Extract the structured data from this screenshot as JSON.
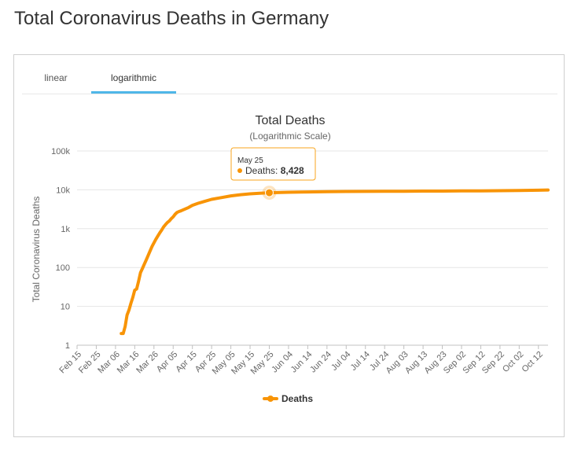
{
  "page": {
    "title": "Total Coronavirus Deaths in Germany"
  },
  "tabs": [
    {
      "label": "linear",
      "active": false
    },
    {
      "label": "logarithmic",
      "active": true
    }
  ],
  "colors": {
    "series": "#f89406",
    "accent_tab": "#4fb7e8",
    "tooltip_border": "#f8a41c"
  },
  "chart_data": {
    "type": "line",
    "title": "Total Deaths",
    "subtitle": "(Logarithmic Scale)",
    "ylabel": "Total Coronavirus Deaths",
    "xlabel": "",
    "yscale": "log",
    "ylim": [
      1,
      100000
    ],
    "y_ticks": [
      {
        "value": 1,
        "label": "1"
      },
      {
        "value": 10,
        "label": "10"
      },
      {
        "value": 100,
        "label": "100"
      },
      {
        "value": 1000,
        "label": "1k"
      },
      {
        "value": 10000,
        "label": "10k"
      },
      {
        "value": 100000,
        "label": "100k"
      }
    ],
    "x_day_range": [
      0,
      245
    ],
    "x_ticks": [
      {
        "day": 0,
        "label": "Feb 15"
      },
      {
        "day": 10,
        "label": "Feb 25"
      },
      {
        "day": 20,
        "label": "Mar 06"
      },
      {
        "day": 30,
        "label": "Mar 16"
      },
      {
        "day": 40,
        "label": "Mar 26"
      },
      {
        "day": 50,
        "label": "Apr 05"
      },
      {
        "day": 60,
        "label": "Apr 15"
      },
      {
        "day": 70,
        "label": "Apr 25"
      },
      {
        "day": 80,
        "label": "May 05"
      },
      {
        "day": 90,
        "label": "May 15"
      },
      {
        "day": 100,
        "label": "May 25"
      },
      {
        "day": 110,
        "label": "Jun 04"
      },
      {
        "day": 120,
        "label": "Jun 14"
      },
      {
        "day": 130,
        "label": "Jun 24"
      },
      {
        "day": 140,
        "label": "Jul 04"
      },
      {
        "day": 150,
        "label": "Jul 14"
      },
      {
        "day": 160,
        "label": "Jul 24"
      },
      {
        "day": 170,
        "label": "Aug 03"
      },
      {
        "day": 180,
        "label": "Aug 13"
      },
      {
        "day": 190,
        "label": "Aug 23"
      },
      {
        "day": 200,
        "label": "Sep 02"
      },
      {
        "day": 210,
        "label": "Sep 12"
      },
      {
        "day": 220,
        "label": "Sep 22"
      },
      {
        "day": 230,
        "label": "Oct 02"
      },
      {
        "day": 240,
        "label": "Oct 12"
      }
    ],
    "series": [
      {
        "name": "Deaths",
        "points": [
          {
            "day": 23,
            "value": 2
          },
          {
            "day": 24,
            "value": 2
          },
          {
            "day": 25,
            "value": 3
          },
          {
            "day": 26,
            "value": 6
          },
          {
            "day": 27,
            "value": 8
          },
          {
            "day": 28,
            "value": 12
          },
          {
            "day": 29,
            "value": 17
          },
          {
            "day": 30,
            "value": 26
          },
          {
            "day": 31,
            "value": 28
          },
          {
            "day": 32,
            "value": 44
          },
          {
            "day": 33,
            "value": 74
          },
          {
            "day": 34,
            "value": 94
          },
          {
            "day": 35,
            "value": 123
          },
          {
            "day": 36,
            "value": 157
          },
          {
            "day": 37,
            "value": 206
          },
          {
            "day": 38,
            "value": 267
          },
          {
            "day": 39,
            "value": 351
          },
          {
            "day": 40,
            "value": 433
          },
          {
            "day": 41,
            "value": 533
          },
          {
            "day": 42,
            "value": 645
          },
          {
            "day": 43,
            "value": 775
          },
          {
            "day": 44,
            "value": 920
          },
          {
            "day": 45,
            "value": 1107
          },
          {
            "day": 46,
            "value": 1275
          },
          {
            "day": 47,
            "value": 1444
          },
          {
            "day": 48,
            "value": 1584
          },
          {
            "day": 49,
            "value": 1810
          },
          {
            "day": 50,
            "value": 2016
          },
          {
            "day": 51,
            "value": 2349
          },
          {
            "day": 52,
            "value": 2607
          },
          {
            "day": 53,
            "value": 2767
          },
          {
            "day": 54,
            "value": 2872
          },
          {
            "day": 55,
            "value": 3022
          },
          {
            "day": 58,
            "value": 3500
          },
          {
            "day": 60,
            "value": 4000
          },
          {
            "day": 63,
            "value": 4500
          },
          {
            "day": 66,
            "value": 5000
          },
          {
            "day": 70,
            "value": 5700
          },
          {
            "day": 75,
            "value": 6300
          },
          {
            "day": 80,
            "value": 7000
          },
          {
            "day": 85,
            "value": 7500
          },
          {
            "day": 90,
            "value": 7900
          },
          {
            "day": 95,
            "value": 8200
          },
          {
            "day": 100,
            "value": 8428
          },
          {
            "day": 110,
            "value": 8650
          },
          {
            "day": 120,
            "value": 8800
          },
          {
            "day": 130,
            "value": 8950
          },
          {
            "day": 140,
            "value": 9050
          },
          {
            "day": 150,
            "value": 9100
          },
          {
            "day": 160,
            "value": 9150
          },
          {
            "day": 170,
            "value": 9200
          },
          {
            "day": 180,
            "value": 9270
          },
          {
            "day": 190,
            "value": 9300
          },
          {
            "day": 200,
            "value": 9350
          },
          {
            "day": 210,
            "value": 9400
          },
          {
            "day": 220,
            "value": 9480
          },
          {
            "day": 230,
            "value": 9600
          },
          {
            "day": 240,
            "value": 9750
          },
          {
            "day": 245,
            "value": 9900
          }
        ]
      }
    ],
    "legend": {
      "label": "Deaths",
      "position": "bottom-center"
    },
    "tooltip": {
      "day": 100,
      "date": "May 25",
      "series_label": "Deaths",
      "value_text": "8,428"
    }
  }
}
